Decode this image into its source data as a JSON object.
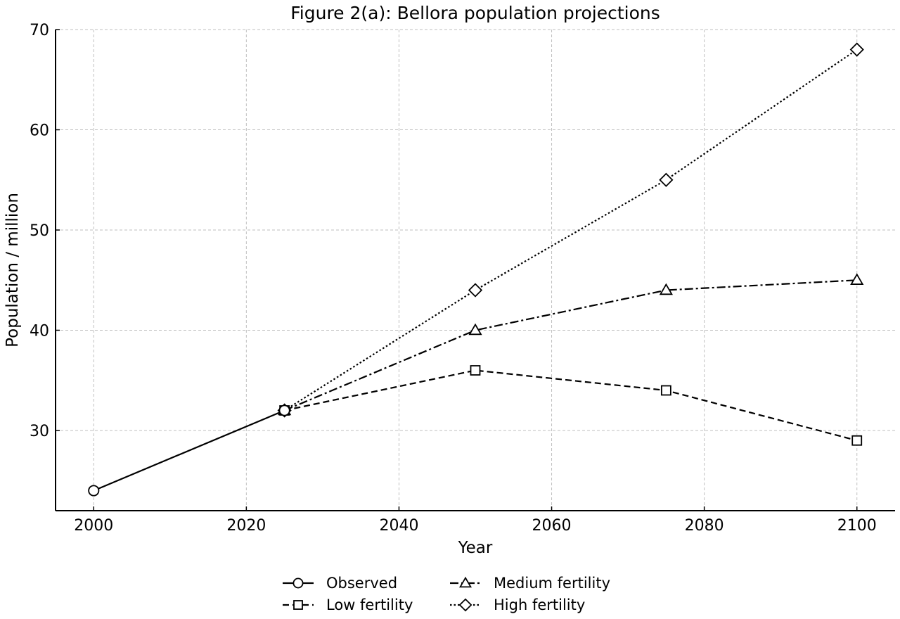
{
  "chart_data": {
    "type": "line",
    "title": "Figure 2(a): Bellora population projections",
    "xlabel": "Year",
    "ylabel": "Population / million",
    "xlim": [
      1995,
      2105
    ],
    "ylim": [
      22,
      70
    ],
    "x_ticks": [
      "2000",
      "2020",
      "2040",
      "2060",
      "2080",
      "2100"
    ],
    "y_ticks": [
      "30",
      "40",
      "50",
      "60",
      "70"
    ],
    "grid": true,
    "legend_position": "bottom-center",
    "series": [
      {
        "name": "Observed",
        "marker": "circle",
        "dash": "solid",
        "x": [
          2000,
          2025
        ],
        "y": [
          24,
          32
        ]
      },
      {
        "name": "Low fertility",
        "marker": "square",
        "dash": "dashed",
        "x": [
          2025,
          2050,
          2075,
          2100
        ],
        "y": [
          32,
          36,
          34,
          29
        ]
      },
      {
        "name": "Medium fertility",
        "marker": "triangle",
        "dash": "dashdot",
        "x": [
          2025,
          2050,
          2075,
          2100
        ],
        "y": [
          32,
          40,
          44,
          45
        ]
      },
      {
        "name": "High fertility",
        "marker": "diamond",
        "dash": "dotted",
        "x": [
          2025,
          2050,
          2075,
          2100
        ],
        "y": [
          32,
          44,
          55,
          68
        ]
      }
    ],
    "colors": {
      "line": "#000000",
      "marker_fill": "#ffffff",
      "grid": "#bfbfbf"
    }
  }
}
